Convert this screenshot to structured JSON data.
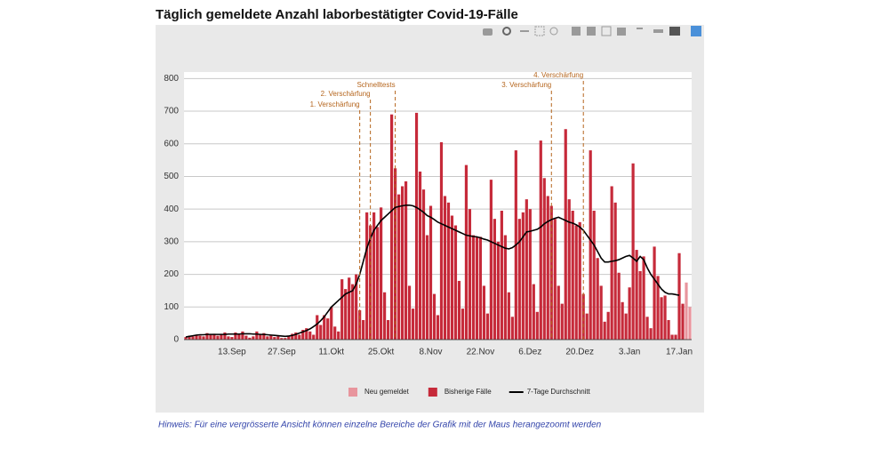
{
  "chart_data": {
    "type": "bar",
    "title": "Täglich gemeldete Anzahl laborbestätigter Covid-19-Fälle",
    "footnote": "Hinweis: Für eine vergrösserte Ansicht können einzelne Bereiche der Grafik mit der Maus herangezoomt werden",
    "categories": [
      null,
      null,
      null,
      null,
      null,
      null,
      null,
      null,
      null,
      null,
      null,
      null,
      null,
      "13.Sep",
      null,
      null,
      null,
      null,
      null,
      null,
      null,
      null,
      null,
      null,
      null,
      null,
      null,
      "27.Sep",
      null,
      null,
      null,
      null,
      null,
      null,
      null,
      null,
      null,
      null,
      null,
      null,
      null,
      "11.Okt",
      null,
      null,
      null,
      null,
      null,
      null,
      null,
      null,
      null,
      null,
      null,
      null,
      null,
      "25.Okt",
      null,
      null,
      null,
      null,
      null,
      null,
      null,
      null,
      null,
      null,
      null,
      null,
      null,
      "8.Nov",
      null,
      null,
      null,
      null,
      null,
      null,
      null,
      null,
      null,
      null,
      null,
      null,
      null,
      "22.Nov",
      null,
      null,
      null,
      null,
      null,
      null,
      null,
      null,
      null,
      null,
      null,
      null,
      null,
      "6.Dez",
      null,
      null,
      null,
      null,
      null,
      null,
      null,
      null,
      null,
      null,
      null,
      null,
      null,
      "20.Dez",
      null,
      null,
      null,
      null,
      null,
      null,
      null,
      null,
      null,
      null,
      null,
      null,
      null,
      "3.Jan",
      null,
      null,
      null,
      null,
      null,
      null,
      null,
      null,
      null,
      null,
      null,
      null,
      null,
      "17.Jan",
      null,
      null,
      null
    ],
    "series": [
      {
        "name": "Neu gemeldet",
        "type": "bar",
        "color": "#e8959d",
        "values": [
          null,
          null,
          null,
          null,
          null,
          null,
          null,
          null,
          null,
          null,
          null,
          null,
          null,
          null,
          null,
          null,
          null,
          null,
          null,
          null,
          null,
          null,
          null,
          null,
          null,
          null,
          null,
          null,
          null,
          null,
          null,
          null,
          null,
          null,
          null,
          null,
          null,
          null,
          null,
          null,
          null,
          null,
          null,
          null,
          null,
          null,
          null,
          null,
          null,
          null,
          null,
          null,
          null,
          null,
          null,
          null,
          null,
          null,
          null,
          null,
          null,
          null,
          null,
          null,
          null,
          null,
          null,
          null,
          null,
          null,
          null,
          null,
          null,
          null,
          null,
          null,
          null,
          null,
          null,
          null,
          null,
          null,
          null,
          null,
          null,
          null,
          null,
          null,
          null,
          null,
          null,
          null,
          null,
          null,
          null,
          null,
          null,
          null,
          null,
          null,
          null,
          null,
          null,
          null,
          null,
          null,
          null,
          null,
          null,
          null,
          null,
          null,
          null,
          null,
          null,
          null,
          null,
          null,
          null,
          null,
          null,
          null,
          null,
          null,
          null,
          null,
          null,
          null,
          null,
          null,
          null,
          null,
          null,
          null,
          null,
          null,
          null,
          null,
          null,
          null,
          null,
          175,
          100
        ]
      },
      {
        "name": "Bisherige Fälle",
        "type": "bar",
        "color": "#c62a3a",
        "values": [
          8,
          12,
          10,
          15,
          12,
          10,
          20,
          15,
          18,
          12,
          16,
          22,
          10,
          8,
          22,
          18,
          25,
          12,
          6,
          10,
          25,
          15,
          20,
          10,
          12,
          8,
          10,
          5,
          5,
          10,
          18,
          22,
          15,
          30,
          35,
          25,
          15,
          75,
          45,
          75,
          65,
          100,
          40,
          25,
          185,
          155,
          190,
          170,
          200,
          90,
          60,
          390,
          350,
          390,
          345,
          405,
          145,
          60,
          690,
          525,
          445,
          470,
          485,
          165,
          95,
          695,
          515,
          460,
          320,
          410,
          140,
          75,
          605,
          440,
          420,
          380,
          350,
          180,
          95,
          535,
          400,
          320,
          315,
          315,
          165,
          80,
          490,
          370,
          300,
          395,
          320,
          145,
          70,
          580,
          370,
          390,
          430,
          400,
          170,
          85,
          610,
          495,
          440,
          410,
          370,
          165,
          110,
          645,
          430,
          395,
          350,
          360,
          140,
          80,
          580,
          395,
          250,
          165,
          55,
          85,
          470,
          420,
          205,
          115,
          80,
          160,
          540,
          275,
          210,
          255,
          70,
          35,
          285,
          195,
          130,
          135,
          60,
          15,
          15,
          265,
          110,
          null,
          null
        ]
      },
      {
        "name": "7-Tage Durchschnitt",
        "type": "line",
        "color": "#000000",
        "values": [
          8,
          10,
          12,
          14,
          15,
          15,
          16,
          16,
          16,
          16,
          16,
          16,
          17,
          17,
          17,
          17,
          18,
          18,
          18,
          17,
          17,
          16,
          16,
          15,
          14,
          13,
          12,
          11,
          10,
          11,
          13,
          16,
          20,
          24,
          28,
          33,
          40,
          48,
          58,
          70,
          85,
          100,
          110,
          120,
          130,
          140,
          145,
          150,
          170,
          200,
          240,
          280,
          310,
          335,
          350,
          365,
          375,
          385,
          395,
          405,
          408,
          410,
          412,
          412,
          410,
          405,
          398,
          390,
          380,
          375,
          368,
          360,
          355,
          350,
          345,
          340,
          335,
          330,
          325,
          320,
          318,
          316,
          315,
          312,
          308,
          305,
          300,
          295,
          290,
          285,
          280,
          278,
          282,
          290,
          300,
          315,
          330,
          332,
          335,
          338,
          345,
          355,
          362,
          368,
          372,
          375,
          370,
          365,
          360,
          357,
          352,
          345,
          335,
          320,
          305,
          290,
          270,
          250,
          238,
          238,
          240,
          242,
          245,
          250,
          255,
          258,
          250,
          240,
          255,
          245,
          220,
          200,
          185,
          170,
          155,
          145,
          140,
          140,
          138,
          136,
          null,
          null,
          null
        ]
      }
    ],
    "annotations": [
      {
        "label": "1. Verschärfung",
        "x": 49
      },
      {
        "label": "2. Verschärfung",
        "x": 52
      },
      {
        "label": "Schnelltests",
        "x": 59
      },
      {
        "label": "3. Verschärfung",
        "x": 103
      },
      {
        "label": "4. Verschärfung",
        "x": 112
      }
    ],
    "annotation_color": "#b5651d",
    "ylim": [
      0,
      820
    ],
    "yticks": [
      0,
      100,
      200,
      300,
      400,
      500,
      600,
      700,
      800
    ],
    "grid": true
  }
}
